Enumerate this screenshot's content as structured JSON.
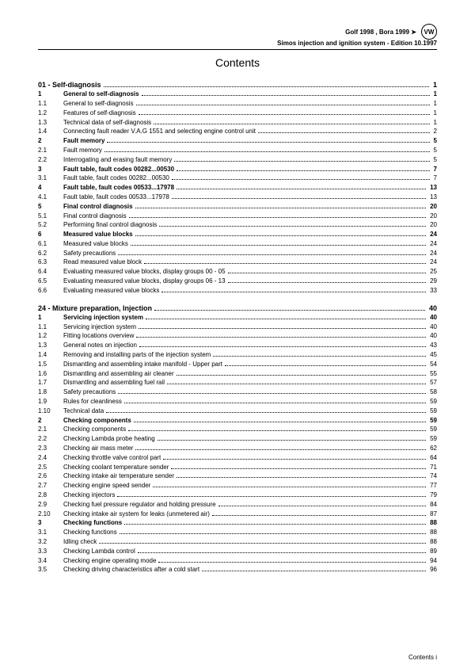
{
  "header": {
    "line1": "Golf 1998 , Bora 1999 ➤",
    "line2": "Simos injection and ignition system - Edition 10.1997",
    "logo_text": "VW"
  },
  "title": "Contents",
  "footer": "Contents   i",
  "chapters": [
    {
      "heading": "01 - Self-diagnosis",
      "heading_page": "1",
      "sections": [
        {
          "num": "1",
          "label": "General to self-diagnosis",
          "page": "1",
          "bold": true
        },
        {
          "num": "1.1",
          "label": "General to self-diagnosis",
          "page": "1"
        },
        {
          "num": "1.2",
          "label": "Features of self-diagnosis",
          "page": "1"
        },
        {
          "num": "1.3",
          "label": "Technical data of self-diagnosis",
          "page": "1"
        },
        {
          "num": "1.4",
          "label": "Connecting fault reader V.A.G 1551 and selecting engine control unit",
          "page": "2"
        },
        {
          "num": "2",
          "label": "Fault memory",
          "page": "5",
          "bold": true
        },
        {
          "num": "2.1",
          "label": "Fault memory",
          "page": "5"
        },
        {
          "num": "2.2",
          "label": "Interrogating and erasing fault memory",
          "page": "5"
        },
        {
          "num": "3",
          "label": "Fault table, fault codes 00282...00530",
          "page": "7",
          "bold": true
        },
        {
          "num": "3.1",
          "label": "Fault table, fault codes 00282...00530",
          "page": "7"
        },
        {
          "num": "4",
          "label": "Fault table, fault codes 00533...17978",
          "page": "13",
          "bold": true
        },
        {
          "num": "4.1",
          "label": "Fault table, fault codes 00533...17978",
          "page": "13"
        },
        {
          "num": "5",
          "label": "Final control diagnosis",
          "page": "20",
          "bold": true
        },
        {
          "num": "5.1",
          "label": "Final control diagnosis",
          "page": "20"
        },
        {
          "num": "5.2",
          "label": "Performing final control diagnosis",
          "page": "20"
        },
        {
          "num": "6",
          "label": "Measured value blocks",
          "page": "24",
          "bold": true
        },
        {
          "num": "6.1",
          "label": "Measured value blocks",
          "page": "24"
        },
        {
          "num": "6.2",
          "label": "Safety precautions",
          "page": "24"
        },
        {
          "num": "6.3",
          "label": "Read measured value block",
          "page": "24"
        },
        {
          "num": "6.4",
          "label": "Evaluating measured value blocks, display groups 00 - 05",
          "page": "25"
        },
        {
          "num": "6.5",
          "label": "Evaluating measured value blocks, display groups 06 - 13",
          "page": "29"
        },
        {
          "num": "6.6",
          "label": "Evaluating measured value blocks",
          "page": "33"
        }
      ]
    },
    {
      "heading": "24 - Mixture preparation, Injection",
      "heading_page": "40",
      "sections": [
        {
          "num": "1",
          "label": "Servicing injection system",
          "page": "40",
          "bold": true
        },
        {
          "num": "1.1",
          "label": "Servicing injection system",
          "page": "40"
        },
        {
          "num": "1.2",
          "label": "Fitting locations overview",
          "page": "40"
        },
        {
          "num": "1.3",
          "label": "General notes on injection",
          "page": "43"
        },
        {
          "num": "1.4",
          "label": "Removing and installing parts of the injection system",
          "page": "45"
        },
        {
          "num": "1.5",
          "label": "Dismantling and assembling intake manifold - Upper part",
          "page": "54"
        },
        {
          "num": "1.6",
          "label": "Dismantling and assembling air cleaner",
          "page": "55"
        },
        {
          "num": "1.7",
          "label": "Dismantling and assembling fuel rail",
          "page": "57"
        },
        {
          "num": "1.8",
          "label": "Safety precautions",
          "page": "58"
        },
        {
          "num": "1.9",
          "label": "Rules for cleanliness",
          "page": "59"
        },
        {
          "num": "1.10",
          "label": "Technical data",
          "page": "59"
        },
        {
          "num": "2",
          "label": "Checking components",
          "page": "59",
          "bold": true
        },
        {
          "num": "2.1",
          "label": "Checking components",
          "page": "59"
        },
        {
          "num": "2.2",
          "label": "Checking Lambda probe heating",
          "page": "59"
        },
        {
          "num": "2.3",
          "label": "Checking air mass meter",
          "page": "62"
        },
        {
          "num": "2.4",
          "label": "Checking throttle valve control part",
          "page": "64"
        },
        {
          "num": "2.5",
          "label": "Checking coolant temperature sender",
          "page": "71"
        },
        {
          "num": "2.6",
          "label": "Checking intake air temperature sender",
          "page": "74"
        },
        {
          "num": "2.7",
          "label": "Checking engine speed sender",
          "page": "77"
        },
        {
          "num": "2.8",
          "label": "Checking injectors",
          "page": "79"
        },
        {
          "num": "2.9",
          "label": "Checking fuel pressure regulator and holding pressure",
          "page": "84"
        },
        {
          "num": "2.10",
          "label": "Checking intake air system for leaks (unmetered air)",
          "page": "87"
        },
        {
          "num": "3",
          "label": "Checking functions",
          "page": "88",
          "bold": true
        },
        {
          "num": "3.1",
          "label": "Checking functions",
          "page": "88"
        },
        {
          "num": "3.2",
          "label": "Idling check",
          "page": "88"
        },
        {
          "num": "3.3",
          "label": "Checking Lambda control",
          "page": "89"
        },
        {
          "num": "3.4",
          "label": "Checking engine operating mode",
          "page": "94"
        },
        {
          "num": "3.5",
          "label": "Checking driving characteristics after a cold start",
          "page": "96"
        }
      ]
    }
  ]
}
